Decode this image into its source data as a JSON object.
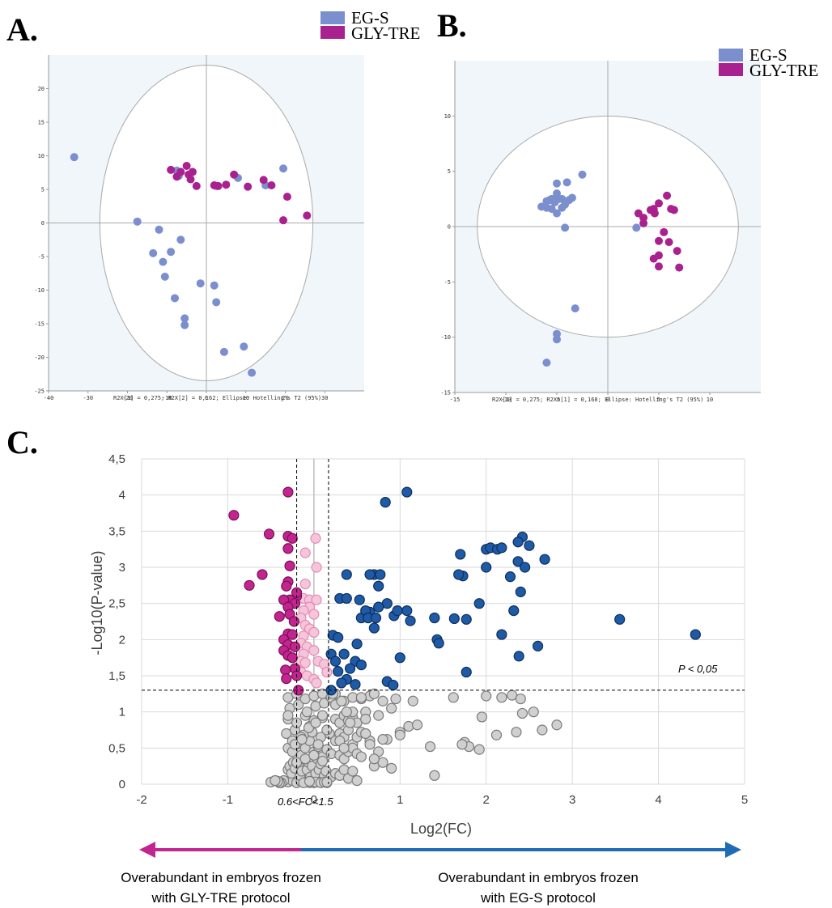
{
  "chart_data": [
    {
      "panel": "A.",
      "type": "scatter",
      "legend": [
        {
          "name": "EG-S",
          "color": "#7b8fce"
        },
        {
          "name": "GLY-TRE",
          "color": "#a9218e"
        }
      ],
      "legend_placement": "top-right",
      "caption": "R2X[1] = 0,275; R2X[2] = 0,162; Ellipse: Hotelling's T2 (95%)",
      "xlim": [
        -40,
        40
      ],
      "ylim": [
        -25,
        25
      ],
      "xticks": [
        -40,
        -30,
        -20,
        -10,
        0,
        10,
        20,
        30
      ],
      "yticks": [
        -25,
        -20,
        -15,
        -10,
        -5,
        0,
        5,
        10,
        15,
        20
      ],
      "ellipse": {
        "center": [
          0,
          0
        ],
        "rx": 27,
        "ry": 23.5
      },
      "series": [
        {
          "name": "EG-S",
          "x": [
            -33.5,
            -17.5,
            -13.5,
            -12,
            -11,
            -10.5,
            -9,
            -8,
            -7.5,
            -6.5,
            -5.5,
            -5.5,
            -1.5,
            2,
            2.5,
            2.5,
            4.5,
            8,
            9.5,
            11.5,
            19.5,
            15,
            -7
          ],
          "y": [
            9.8,
            0.2,
            -4.5,
            -1,
            -5.8,
            -8,
            -4.3,
            -11.2,
            7.8,
            -2.5,
            -14.2,
            -15.2,
            -9,
            -9.3,
            -11.8,
            5.5,
            -19.2,
            6.7,
            -18.4,
            -22.3,
            8.1,
            5.6,
            7
          ]
        },
        {
          "name": "GLY-TRE",
          "x": [
            -9,
            -7.5,
            -5,
            -4.5,
            -4,
            -3.5,
            -2.5,
            2,
            3,
            5,
            7,
            10.5,
            14.5,
            16.5,
            19.5,
            20.5,
            25.5,
            -6.5
          ],
          "y": [
            7.9,
            6.9,
            8.5,
            7.2,
            6.5,
            7.6,
            5.5,
            5.6,
            5.5,
            5.7,
            7.2,
            5.4,
            6.4,
            5.6,
            0.4,
            3.9,
            1.1,
            7.6
          ]
        }
      ]
    },
    {
      "panel": "B.",
      "type": "scatter",
      "legend": [
        {
          "name": "EG-S",
          "color": "#7b8fce"
        },
        {
          "name": "GLY-TRE",
          "color": "#a9218e"
        }
      ],
      "legend_placement": "top-right",
      "caption": "R2X[1] = 0,275; R2Xo[1] = 0,168; Ellipse: Hotelling's T2 (95%)",
      "xlim": [
        -15,
        15
      ],
      "ylim": [
        -15,
        15
      ],
      "xticks": [
        -15,
        -10,
        -5,
        0,
        5,
        10
      ],
      "yticks": [
        -15,
        -10,
        -5,
        0,
        5,
        10
      ],
      "ellipse": {
        "center": [
          0,
          0
        ],
        "rx": 12.8,
        "ry": 10
      },
      "series": [
        {
          "name": "EG-S",
          "x": [
            -6.5,
            -6,
            -5.5,
            -5.2,
            -5,
            -5,
            -4.8,
            -4.5,
            -4.5,
            -4.2,
            -4,
            -3.8,
            -3.5,
            -2.5,
            -6,
            -5.5,
            -5,
            -4.2,
            -3.2,
            -5,
            -5,
            -6,
            2.8,
            -5.7
          ],
          "y": [
            1.8,
            2.3,
            1.6,
            2.2,
            3.9,
            1.2,
            2.5,
            2.5,
            1.7,
            -0.1,
            4,
            2.4,
            2.6,
            4.7,
            1.7,
            2.5,
            3,
            2,
            -7.4,
            -9.7,
            -10.2,
            -12.3,
            -0.1,
            2.4
          ]
        },
        {
          "name": "GLY-TRE",
          "x": [
            3,
            3.5,
            3.5,
            4.2,
            4.5,
            4.6,
            5,
            5,
            5.5,
            5.8,
            6,
            6.2,
            6.5,
            6.8,
            7,
            5,
            5,
            4.5
          ],
          "y": [
            1.2,
            0.8,
            0.3,
            1.5,
            1.6,
            1.2,
            2.1,
            -1.3,
            -0.5,
            2.8,
            -1.4,
            1.6,
            1.5,
            -2.2,
            -3.7,
            -3.6,
            -2.6,
            -2.9
          ]
        }
      ]
    },
    {
      "panel": "C.",
      "type": "scatter",
      "xlabel": "Log2(FC)",
      "ylabel": "-Log10(P-value)",
      "xlim": [
        -2,
        5
      ],
      "ylim": [
        0,
        4.5
      ],
      "xticks": [
        "-2",
        "-1",
        "0",
        "1",
        "2",
        "3",
        "4",
        "5"
      ],
      "yticks": [
        "0",
        "0,5",
        "1",
        "1,5",
        "2",
        "2,5",
        "3",
        "3,5",
        "4",
        "4,5"
      ],
      "grid": true,
      "threshold_y": 1.3,
      "threshold_label": "P < 0,05",
      "fc_lines_x": [
        -0.2,
        0.17
      ],
      "fc_label": "0.6<FC<1.5",
      "series": [
        {
          "name": "",
          "color": "#1f5aa6",
          "x": [
            0.83,
            1.08,
            0.38,
            0.7,
            0.77,
            0.75,
            0.65,
            0.65,
            0.3,
            0.38,
            0.53,
            0.55,
            0.6,
            0.63,
            0.7,
            0.72,
            0.85,
            0.93,
            0.97,
            1.08,
            1.12,
            1.4,
            1.43,
            1.45,
            1.63,
            1.77,
            0.22,
            0.28,
            0.35,
            0.48,
            0.55,
            0.2,
            0.25,
            0.28,
            0.38,
            0.42,
            0.32,
            0.48,
            0.85,
            0.92,
            0.2,
            1.0,
            1.7,
            1.73,
            1.92,
            2.0,
            2.0,
            2.05,
            2.13,
            2.18,
            2.42,
            2.5,
            2.37,
            2.45,
            2.4,
            2.28,
            2.32,
            2.38,
            2.68,
            2.18,
            2.6,
            2.37,
            3.55,
            4.43,
            1.68,
            1.77,
            0.5,
            0.75
          ],
          "y": [
            3.9,
            4.04,
            2.9,
            2.9,
            2.9,
            2.74,
            2.9,
            2.38,
            2.57,
            2.57,
            2.55,
            2.3,
            2.4,
            2.3,
            2.16,
            2.3,
            2.5,
            2.33,
            2.4,
            2.4,
            2.26,
            2.3,
            2.0,
            1.95,
            2.29,
            1.55,
            2.06,
            2.03,
            1.8,
            1.7,
            1.65,
            1.8,
            1.7,
            1.56,
            1.45,
            1.6,
            1.4,
            1.38,
            1.42,
            1.37,
            1.3,
            1.75,
            3.18,
            2.88,
            2.5,
            3.25,
            3.0,
            3.27,
            3.25,
            2.07,
            3.42,
            3.3,
            3.08,
            3.0,
            2.66,
            2.87,
            2.4,
            1.77,
            3.11,
            3.27,
            1.91,
            3.35,
            2.28,
            2.07,
            2.9,
            2.28,
            1.94,
            2.45
          ]
        },
        {
          "name": "",
          "color": "#c2258f",
          "x": [
            -0.93,
            -0.52,
            -0.3,
            -0.3,
            -0.25,
            -0.3,
            -0.28,
            -0.2,
            -0.6,
            -0.75,
            -0.3,
            -0.32,
            -0.2,
            -0.28,
            -0.22,
            -0.35,
            -0.3,
            -0.4,
            -0.28,
            -0.23,
            -0.3,
            -0.35,
            -0.25,
            -0.3,
            -0.22,
            -0.35,
            -0.3,
            -0.25,
            -0.22,
            -0.33,
            -0.2,
            -0.18,
            -0.32
          ],
          "y": [
            3.72,
            3.46,
            4.04,
            3.43,
            3.4,
            3.26,
            3.02,
            2.6,
            2.9,
            2.75,
            2.8,
            2.74,
            2.65,
            2.55,
            2.5,
            2.55,
            2.45,
            2.32,
            2.35,
            2.25,
            2.08,
            2.0,
            2.07,
            1.93,
            1.9,
            1.85,
            1.78,
            1.75,
            1.6,
            1.58,
            1.5,
            1.3,
            1.46
          ]
        },
        {
          "name": "",
          "color": "#f5c6db",
          "x": [
            0.02,
            -0.1,
            0.03,
            -0.1,
            -0.12,
            -0.05,
            0.03,
            -0.05,
            -0.12,
            0.0,
            -0.15,
            -0.1,
            -0.05,
            0.0,
            -0.12,
            -0.15,
            -0.08,
            0.0,
            -0.12,
            0.05,
            -0.15,
            -0.1,
            0.12,
            0.15,
            -0.15,
            -0.08,
            0.0,
            0.03
          ],
          "y": [
            3.4,
            3.2,
            3.0,
            2.77,
            2.57,
            2.55,
            2.55,
            2.45,
            2.4,
            2.35,
            2.3,
            2.2,
            2.15,
            2.1,
            2.05,
            1.95,
            1.9,
            1.85,
            1.8,
            1.7,
            1.7,
            1.68,
            1.66,
            1.55,
            1.55,
            1.5,
            1.45,
            1.4
          ]
        },
        {
          "name": "",
          "color": "#d0d0d0",
          "x": [
            -0.5,
            -0.45,
            -0.4,
            -0.35,
            -0.3,
            -0.25,
            -0.2,
            -0.15,
            -0.1,
            -0.05,
            0.0,
            0.05,
            0.1,
            0.15,
            -0.3,
            -0.28,
            -0.26,
            -0.24,
            -0.22,
            -0.18,
            -0.16,
            -0.14,
            -0.12,
            -0.08,
            -0.06,
            -0.04,
            -0.02,
            0.02,
            0.04,
            0.06,
            0.08,
            0.12,
            0.14,
            -0.3,
            -0.25,
            -0.2,
            -0.15,
            -0.1,
            -0.05,
            0.0,
            0.05,
            0.1,
            0.15,
            -0.32,
            -0.22,
            -0.12,
            -0.02,
            0.08,
            0.18,
            -0.3,
            -0.2,
            -0.1,
            0.0,
            0.1,
            -0.28,
            -0.18,
            -0.08,
            0.02,
            0.12,
            -0.3,
            -0.2,
            -0.1,
            0.0,
            0.1,
            0.2,
            -0.25,
            -0.15,
            -0.05,
            0.05,
            0.15,
            -0.3,
            -0.22,
            -0.14,
            -0.06,
            0.02,
            0.1,
            -0.2,
            -0.1,
            0.0,
            0.1,
            0.2,
            0.25,
            0.3,
            0.35,
            0.4,
            0.45,
            0.5,
            0.25,
            0.3,
            0.35,
            0.4,
            0.45,
            0.5,
            0.55,
            0.3,
            0.35,
            0.4,
            0.45,
            0.5,
            0.55,
            0.2,
            0.25,
            0.3,
            0.35,
            0.4,
            0.45,
            0.25,
            0.35,
            0.45,
            0.55,
            0.65,
            0.6,
            0.7,
            0.75,
            0.8,
            0.9,
            0.95,
            0.65,
            0.7,
            0.75,
            0.8,
            0.6,
            0.65,
            0.85,
            1.0,
            1.1,
            1.2,
            0.9,
            0.8,
            0.7,
            1.0,
            1.15,
            1.4,
            1.35,
            1.62,
            1.75,
            1.8,
            1.92,
            1.95,
            2.0,
            2.12,
            2.18,
            2.3,
            2.35,
            2.4,
            2.42,
            2.55,
            2.65,
            2.82,
            1.72,
            0.5,
            0.45,
            0.55,
            0.6,
            0.32,
            0.38,
            0.42,
            0.3,
            0.35,
            0.25,
            0.22,
            -0.35,
            -0.38,
            -0.12,
            0.0,
            0.02,
            -0.05,
            0.08,
            0.12,
            0.15,
            -0.4,
            -0.42,
            -0.45
          ],
          "y": [
            0.03,
            0.05,
            0.02,
            0.04,
            0.03,
            0.05,
            0.02,
            0.04,
            0.03,
            0.02,
            0.04,
            0.03,
            0.05,
            0.02,
            0.2,
            0.25,
            0.15,
            0.3,
            0.22,
            0.28,
            0.12,
            0.18,
            0.35,
            0.2,
            0.3,
            0.1,
            0.25,
            0.15,
            0.35,
            0.2,
            0.28,
            0.12,
            0.18,
            0.5,
            0.45,
            0.55,
            0.4,
            0.5,
            0.6,
            0.45,
            0.52,
            0.38,
            0.48,
            0.7,
            0.75,
            0.68,
            0.72,
            0.65,
            0.7,
            0.9,
            0.85,
            0.95,
            0.88,
            0.92,
            1.05,
            1.1,
            1.0,
            1.08,
            1.12,
            1.2,
            1.25,
            1.18,
            1.22,
            1.25,
            1.2,
            0.6,
            0.65,
            0.8,
            0.55,
            0.75,
            0.95,
            0.55,
            0.62,
            0.78,
            0.85,
            0.95,
            0.3,
            0.35,
            0.4,
            0.32,
            0.42,
            0.9,
            0.85,
            0.95,
            0.88,
            0.92,
            0.85,
            0.6,
            0.7,
            0.65,
            0.75,
            0.55,
            0.65,
            0.72,
            0.4,
            0.35,
            0.45,
            0.5,
            0.42,
            0.38,
            0.1,
            0.15,
            0.12,
            0.2,
            0.08,
            0.18,
            1.1,
            1.15,
            1.2,
            1.18,
            1.22,
            1.0,
            1.25,
            0.95,
            1.15,
            1.05,
            1.18,
            0.6,
            0.25,
            0.45,
            0.3,
            0.7,
            0.55,
            0.62,
            0.72,
            0.8,
            0.82,
            0.22,
            0.62,
            0.35,
            0.68,
            1.15,
            0.12,
            0.52,
            1.2,
            0.58,
            0.52,
            0.48,
            0.93,
            1.22,
            0.68,
            1.2,
            1.23,
            0.72,
            1.18,
            0.98,
            1.0,
            0.75,
            0.82,
            0.55,
            0.05,
            1.0,
            1.2,
            0.9,
            1.15,
            1.0,
            0.85,
            0.6,
            0.5,
            1.25,
            1.25,
            0.05,
            0.02,
            0.02,
            0.02,
            0.03,
            0.04,
            0.02,
            0.03,
            0.03,
            0.02,
            0.04,
            0.05
          ]
        }
      ],
      "arrows": {
        "left_color": "#c2258f",
        "right_color": "#1f6cb6",
        "left_caption_1": "Overabundant in embryos frozen",
        "left_caption_2": "with GLY-TRE protocol",
        "right_caption_1": "Overabundant in embryos frozen",
        "right_caption_2": "with EG-S protocol"
      }
    }
  ]
}
